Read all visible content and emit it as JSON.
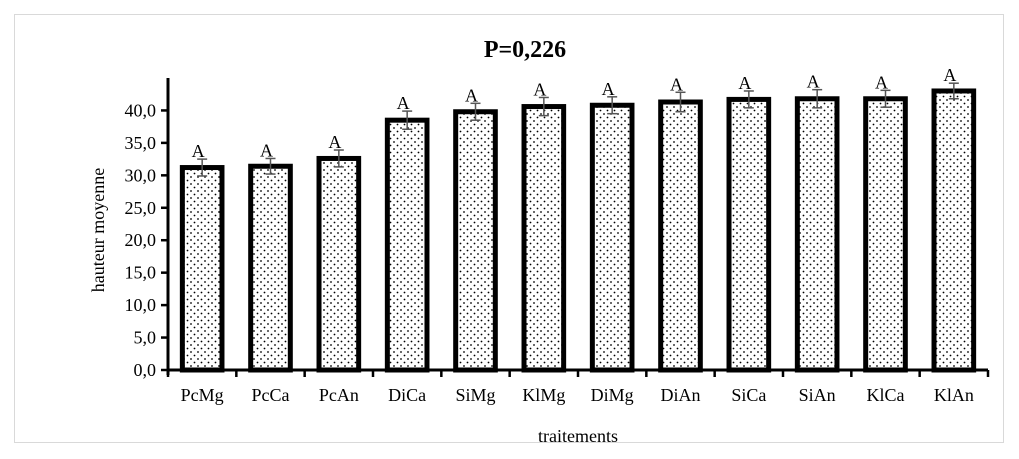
{
  "chart_data": {
    "type": "bar",
    "title": "P=0,226",
    "xlabel": "traitements",
    "ylabel": "hauteur moyenne",
    "categories": [
      "PcMg",
      "PcCa",
      "PcAn",
      "DiCa",
      "SiMg",
      "KlMg",
      "DiMg",
      "DiAn",
      "SiCa",
      "SiAn",
      "KlCa",
      "KlAn"
    ],
    "values": [
      31.2,
      31.4,
      32.6,
      38.5,
      39.8,
      40.6,
      40.8,
      41.3,
      41.7,
      41.8,
      41.8,
      43.0
    ],
    "errors": [
      1.3,
      1.2,
      1.3,
      1.4,
      1.3,
      1.4,
      1.3,
      1.5,
      1.3,
      1.4,
      1.3,
      1.2
    ],
    "group_letters": [
      "A",
      "A",
      "A",
      "A",
      "A",
      "A",
      "A",
      "A",
      "A",
      "A",
      "A",
      "A"
    ],
    "ylim": [
      0,
      45
    ],
    "yticks": [
      0,
      5,
      10,
      15,
      20,
      25,
      30,
      35,
      40
    ],
    "ytick_labels": [
      "0,0",
      "5,0",
      "10,0",
      "15,0",
      "20,0",
      "25,0",
      "30,0",
      "35,0",
      "40,0"
    ],
    "grid": false,
    "legend": "none",
    "bar_fill": "dotted",
    "colors": {
      "bar_outline": "#000000",
      "dots": "#000000",
      "error_bar": "#555555",
      "text": "#000000"
    }
  }
}
